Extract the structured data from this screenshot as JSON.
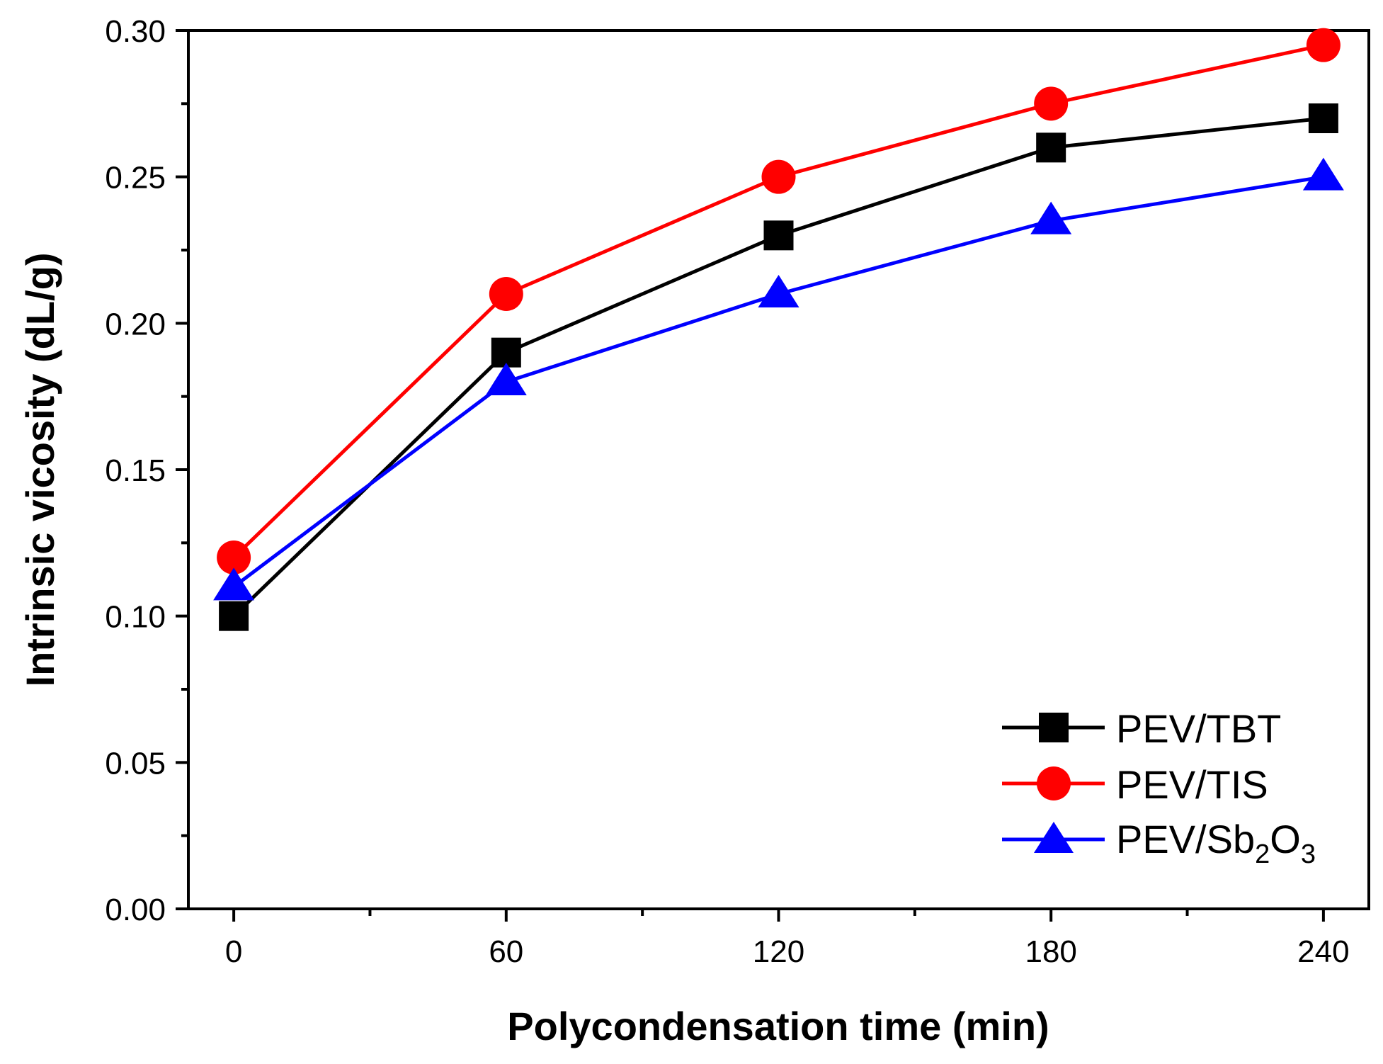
{
  "chart_data": {
    "type": "line",
    "title": "",
    "xlabel": "Polycondensation time (min)",
    "ylabel": "Intrinsic vicosity (dL/g)",
    "x": [
      0,
      60,
      120,
      180,
      240
    ],
    "xlim": [
      -10,
      250
    ],
    "ylim": [
      0.0,
      0.3
    ],
    "xticks": [
      0,
      60,
      120,
      180,
      240
    ],
    "xtick_labels": [
      "0",
      "60",
      "120",
      "180",
      "240"
    ],
    "yticks": [
      0.0,
      0.05,
      0.1,
      0.15,
      0.2,
      0.25,
      0.3
    ],
    "ytick_labels": [
      "0.00",
      "0.05",
      "0.10",
      "0.15",
      "0.20",
      "0.25",
      "0.30"
    ],
    "grid": false,
    "legend_position": "bottom-right",
    "series": [
      {
        "name": "PEV/TBT",
        "legend_label": "PEV/TBT",
        "marker": "square",
        "color": "#000000",
        "values": [
          0.1,
          0.19,
          0.23,
          0.26,
          0.27
        ]
      },
      {
        "name": "PEV/TIS",
        "legend_label": "PEV/TIS",
        "marker": "circle",
        "color": "#ff0000",
        "values": [
          0.12,
          0.21,
          0.25,
          0.275,
          0.295
        ]
      },
      {
        "name": "PEV/Sb2O3",
        "legend_label": "PEV/Sb",
        "legend_sub1": "2",
        "legend_mid": "O",
        "legend_sub2": "3",
        "marker": "triangle",
        "color": "#0000ff",
        "values": [
          0.11,
          0.18,
          0.21,
          0.235,
          0.25
        ]
      }
    ]
  }
}
